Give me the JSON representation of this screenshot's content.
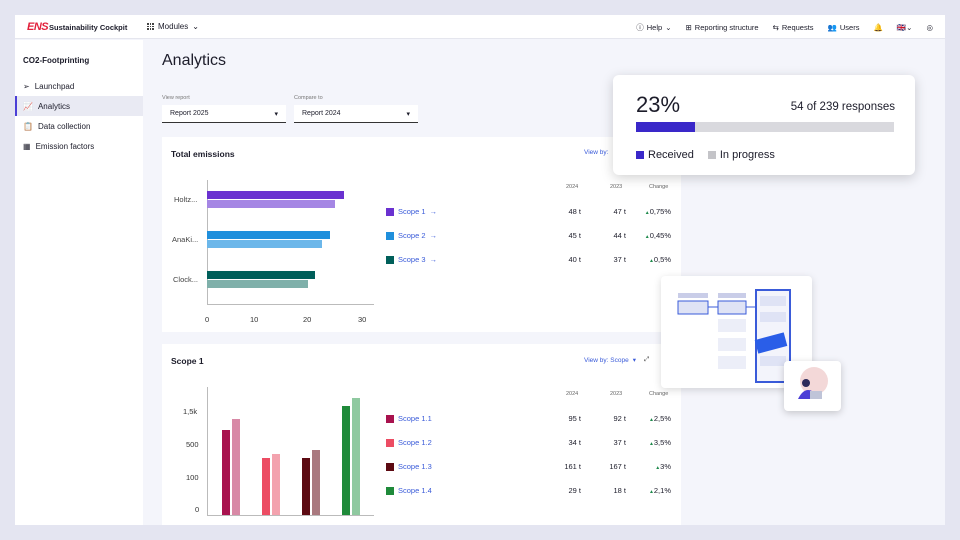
{
  "header": {
    "logo_text": "ENS",
    "app_title": "Sustainability Cockpit",
    "modules_label": "Modules",
    "nav": [
      "Help",
      "Reporting structure",
      "Requests",
      "Users"
    ]
  },
  "sidebar": {
    "title": "CO2-Footprinting",
    "items": [
      {
        "label": "Launchpad",
        "icon": "paper-plane-icon"
      },
      {
        "label": "Analytics",
        "icon": "chart-icon",
        "active": true
      },
      {
        "label": "Data collection",
        "icon": "clipboard-icon"
      },
      {
        "label": "Emission factors",
        "icon": "grid-icon"
      }
    ]
  },
  "page": {
    "title": "Analytics",
    "view_report_label": "View report",
    "view_report_value": "Report 2025",
    "compare_label": "Compare to",
    "compare_value": "Report 2024"
  },
  "total_card": {
    "title": "Total emissions",
    "view_by": "View by:",
    "headers": [
      "2024",
      "2023",
      "Change"
    ],
    "rows": [
      {
        "name": "Scope 1",
        "color": "#6a31d0",
        "v2024": "48 t",
        "v2023": "47 t",
        "change": "0,75%"
      },
      {
        "name": "Scope 2",
        "color": "#1f8fdc",
        "v2024": "45 t",
        "v2023": "44 t",
        "change": "0,45%"
      },
      {
        "name": "Scope 3",
        "color": "#005f5a",
        "v2024": "40 t",
        "v2023": "37 t",
        "change": "0,5%"
      }
    ]
  },
  "scope1_card": {
    "title": "Scope 1",
    "view_by": "View by: Scope",
    "headers": [
      "2024",
      "2023",
      "Change"
    ],
    "rows": [
      {
        "name": "Scope 1.1",
        "color": "#a8124e",
        "v2024": "95 t",
        "v2023": "92 t",
        "change": "2,5%"
      },
      {
        "name": "Scope 1.2",
        "color": "#ec4c63",
        "v2024": "34 t",
        "v2023": "37 t",
        "change": "3,5%"
      },
      {
        "name": "Scope 1.3",
        "color": "#5c0a12",
        "v2024": "161 t",
        "v2023": "167 t",
        "change": "3%"
      },
      {
        "name": "Scope 1.4",
        "color": "#1f8a3a",
        "v2024": "29 t",
        "v2023": "18 t",
        "change": "2,1%"
      }
    ]
  },
  "popup": {
    "percent_text": "23%",
    "percent_value": 0.23,
    "responses_text": "54 of 239 responses",
    "legend_received": "Received",
    "legend_in_progress": "In progress",
    "received_color": "#3a28c9",
    "in_progress_color": "#c4c4c8"
  },
  "chart_data": [
    {
      "type": "bar",
      "orientation": "horizontal",
      "categories": [
        "Holtz...",
        "AnaKi...",
        "Clock..."
      ],
      "series": [
        {
          "values": [
            26.5,
            24.5,
            21
          ],
          "color": "#6a31d0/#1f8fdc/#005f5a"
        },
        {
          "values": [
            25,
            22.5,
            19.5
          ],
          "color": "#a586e4/#6cb7ea/#7fb0aa"
        }
      ],
      "xticks": [
        "0",
        "10",
        "20",
        "30"
      ],
      "xlim": [
        0,
        32
      ]
    },
    {
      "type": "bar",
      "categories": [
        "Scope 1.1",
        "Scope 1.2",
        "Scope 1.3",
        "Scope 1.4"
      ],
      "series": [
        {
          "values": [
            1300,
            830,
            820,
            1650
          ]
        },
        {
          "values": [
            1440,
            880,
            940,
            1750
          ]
        }
      ],
      "yticks": [
        "0",
        "100",
        "500",
        "1,5k"
      ],
      "ylim": [
        0,
        1900
      ]
    }
  ]
}
